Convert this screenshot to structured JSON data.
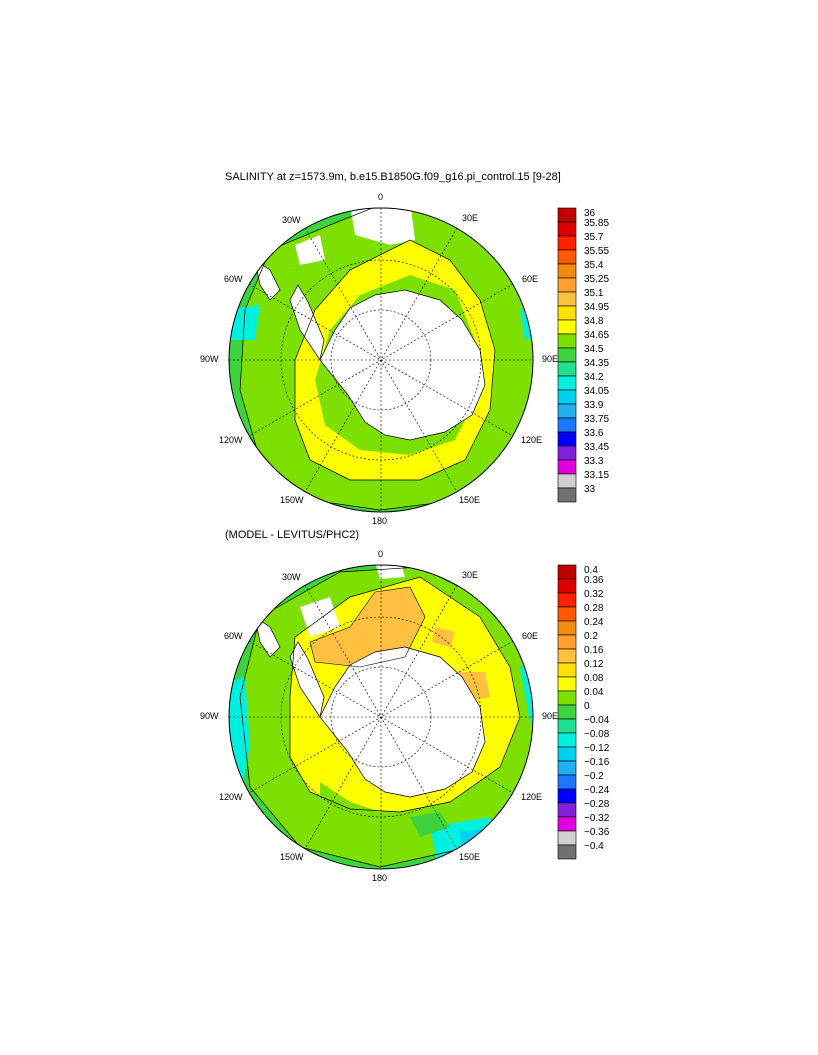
{
  "panels": [
    {
      "title": "SALINITY at z=1573.9m, b.e15.B1850G.f09_g16.pi_control.15 [9-28]",
      "lon_labels": {
        "n": "0",
        "ne": "30E",
        "nw": "30W",
        "ene": "60E",
        "wnw": "60W",
        "e": "90E",
        "w": "90W",
        "ese": "120E",
        "wsw": "120W",
        "se": "150E",
        "sw": "150W",
        "s": "180"
      },
      "colorbar": {
        "labels": [
          "36",
          "35.85",
          "35.7",
          "35.55",
          "35.4",
          "35.25",
          "35.1",
          "34.95",
          "34.8",
          "34.65",
          "34.5",
          "34.35",
          "34.2",
          "34.05",
          "33.9",
          "33.75",
          "33.6",
          "33.45",
          "33.3",
          "33.15",
          "33"
        ],
        "colors": [
          "#c00000",
          "#dd0000",
          "#ff2000",
          "#ff5a00",
          "#f08c10",
          "#ffa030",
          "#ffc040",
          "#ffe000",
          "#ffff00",
          "#7ee000",
          "#3ed23e",
          "#1ee090",
          "#00f0e0",
          "#00d0f0",
          "#20b0f0",
          "#1e78ff",
          "#0000ff",
          "#8020d8",
          "#e000e0",
          "#d0d0d0",
          "#707070"
        ]
      }
    },
    {
      "title": "(MODEL - LEVITUS/PHC2)",
      "lon_labels": {
        "n": "0",
        "ne": "30E",
        "nw": "30W",
        "ene": "60E",
        "wnw": "60W",
        "e": "90E",
        "w": "90W",
        "ese": "120E",
        "wsw": "120W",
        "se": "150E",
        "sw": "150W",
        "s": "180"
      },
      "colorbar": {
        "labels": [
          "0.4",
          "0.36",
          "0.32",
          "0.28",
          "0.24",
          "0.2",
          "0.16",
          "0.12",
          "0.08",
          "0.04",
          "0",
          "−0.04",
          "−0.08",
          "−0.12",
          "−0.16",
          "−0.2",
          "−0.24",
          "−0.28",
          "−0.32",
          "−0.36",
          "−0.4"
        ],
        "colors": [
          "#c00000",
          "#dd0000",
          "#ff2000",
          "#ff5a00",
          "#f08c10",
          "#ffa030",
          "#ffc040",
          "#ffe000",
          "#ffff00",
          "#7ee000",
          "#3ed23e",
          "#1ee090",
          "#00f0e0",
          "#00d0f0",
          "#20b0f0",
          "#1e78ff",
          "#0000ff",
          "#8020d8",
          "#e000e0",
          "#d0d0d0",
          "#707070"
        ]
      }
    }
  ]
}
